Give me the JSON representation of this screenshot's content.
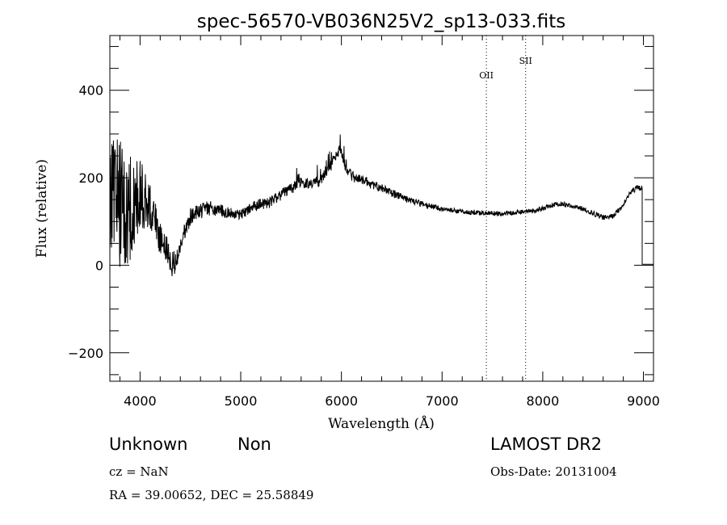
{
  "chart_data": {
    "type": "line",
    "title": "spec-56570-VB036N25V2_sp13-033.fits",
    "xlabel": "Wavelength (Å)",
    "ylabel": "Flux (relative)",
    "xlim": [
      3700,
      9100
    ],
    "ylim": [
      -265,
      525
    ],
    "xticks": [
      4000,
      5000,
      6000,
      7000,
      8000,
      9000
    ],
    "yticks": [
      -200,
      0,
      200,
      400
    ],
    "xminor_step": 200,
    "yminor_step": 50,
    "grid": false,
    "line_color": "#000000",
    "spectrum_keypoints": [
      [
        3700,
        150
      ],
      [
        3740,
        200
      ],
      [
        3800,
        150
      ],
      [
        3850,
        120
      ],
      [
        3900,
        140
      ],
      [
        3950,
        150
      ],
      [
        4000,
        160
      ],
      [
        4050,
        140
      ],
      [
        4100,
        130
      ],
      [
        4150,
        100
      ],
      [
        4200,
        60
      ],
      [
        4250,
        40
      ],
      [
        4300,
        10
      ],
      [
        4350,
        0
      ],
      [
        4400,
        40
      ],
      [
        4450,
        80
      ],
      [
        4500,
        110
      ],
      [
        4550,
        120
      ],
      [
        4600,
        125
      ],
      [
        4700,
        130
      ],
      [
        4800,
        125
      ],
      [
        4900,
        120
      ],
      [
        5000,
        115
      ],
      [
        5100,
        130
      ],
      [
        5200,
        140
      ],
      [
        5300,
        145
      ],
      [
        5400,
        160
      ],
      [
        5500,
        175
      ],
      [
        5600,
        190
      ],
      [
        5700,
        185
      ],
      [
        5800,
        195
      ],
      [
        5850,
        210
      ],
      [
        5900,
        230
      ],
      [
        5950,
        250
      ],
      [
        5980,
        265
      ],
      [
        6000,
        255
      ],
      [
        6050,
        220
      ],
      [
        6100,
        205
      ],
      [
        6200,
        195
      ],
      [
        6300,
        185
      ],
      [
        6400,
        175
      ],
      [
        6500,
        165
      ],
      [
        6600,
        155
      ],
      [
        6700,
        147
      ],
      [
        6800,
        140
      ],
      [
        6900,
        135
      ],
      [
        7000,
        128
      ],
      [
        7100,
        125
      ],
      [
        7200,
        122
      ],
      [
        7300,
        120
      ],
      [
        7400,
        120
      ],
      [
        7500,
        118
      ],
      [
        7600,
        118
      ],
      [
        7700,
        120
      ],
      [
        7800,
        122
      ],
      [
        7900,
        125
      ],
      [
        8000,
        130
      ],
      [
        8100,
        138
      ],
      [
        8200,
        140
      ],
      [
        8300,
        135
      ],
      [
        8400,
        128
      ],
      [
        8500,
        118
      ],
      [
        8600,
        110
      ],
      [
        8700,
        112
      ],
      [
        8750,
        125
      ],
      [
        8800,
        140
      ],
      [
        8850,
        160
      ],
      [
        8900,
        172
      ],
      [
        8950,
        178
      ],
      [
        8985,
        175
      ]
    ],
    "noise_profile": [
      [
        3700,
        190
      ],
      [
        3800,
        170
      ],
      [
        3900,
        140
      ],
      [
        4000,
        110
      ],
      [
        4100,
        70
      ],
      [
        4200,
        45
      ],
      [
        4300,
        35
      ],
      [
        4400,
        25
      ],
      [
        4500,
        20
      ],
      [
        5000,
        14
      ],
      [
        6000,
        14
      ],
      [
        6500,
        10
      ],
      [
        7000,
        6
      ],
      [
        8000,
        6
      ],
      [
        9000,
        7
      ]
    ],
    "edge_drop": {
      "x": 8988,
      "top": 175,
      "bottom": 2
    },
    "lines": [
      {
        "label": "OII",
        "x": 7440
      },
      {
        "label": "SII",
        "x": 7830
      }
    ]
  },
  "info": {
    "class": "Unknown",
    "subclass": "Non",
    "survey": "LAMOST DR2",
    "cz": "cz = NaN",
    "obs_date": "Obs-Date: 20131004",
    "coords": "RA =  39.00652, DEC =  25.58849"
  }
}
